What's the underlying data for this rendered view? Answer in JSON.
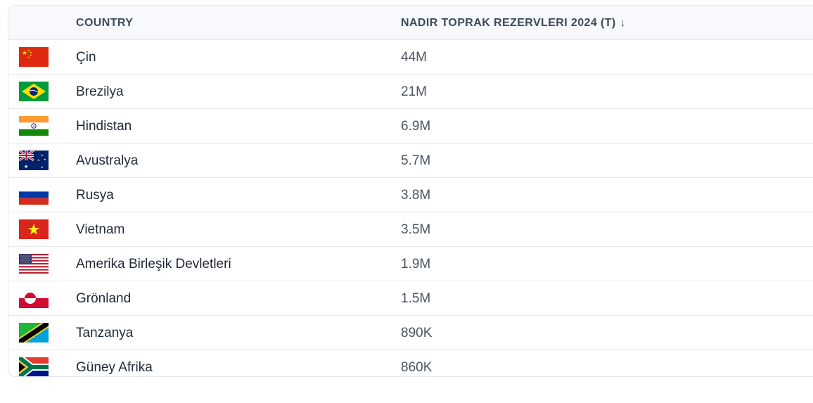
{
  "table": {
    "headers": {
      "country": "COUNTRY",
      "value": "NADIR TOPRAK REZERVLERI 2024 (T)",
      "sort_indicator": "↓"
    },
    "rows": [
      {
        "country": "Çin",
        "value": "44M",
        "flag": "china-flag-icon"
      },
      {
        "country": "Brezilya",
        "value": "21M",
        "flag": "brazil-flag-icon"
      },
      {
        "country": "Hindistan",
        "value": "6.9M",
        "flag": "india-flag-icon"
      },
      {
        "country": "Avustralya",
        "value": "5.7M",
        "flag": "australia-flag-icon"
      },
      {
        "country": "Rusya",
        "value": "3.8M",
        "flag": "russia-flag-icon"
      },
      {
        "country": "Vietnam",
        "value": "3.5M",
        "flag": "vietnam-flag-icon"
      },
      {
        "country": "Amerika Birleşik Devletleri",
        "value": "1.9M",
        "flag": "usa-flag-icon"
      },
      {
        "country": "Grönland",
        "value": "1.5M",
        "flag": "greenland-flag-icon"
      },
      {
        "country": "Tanzanya",
        "value": "890K",
        "flag": "tanzania-flag-icon"
      },
      {
        "country": "Güney Afrika",
        "value": "860K",
        "flag": "south-africa-flag-icon"
      }
    ]
  },
  "colors": {
    "header_bg": "#f7f9fc",
    "border": "#e5e7eb",
    "header_text": "#3f4a5c",
    "value_text": "#4b5563"
  }
}
